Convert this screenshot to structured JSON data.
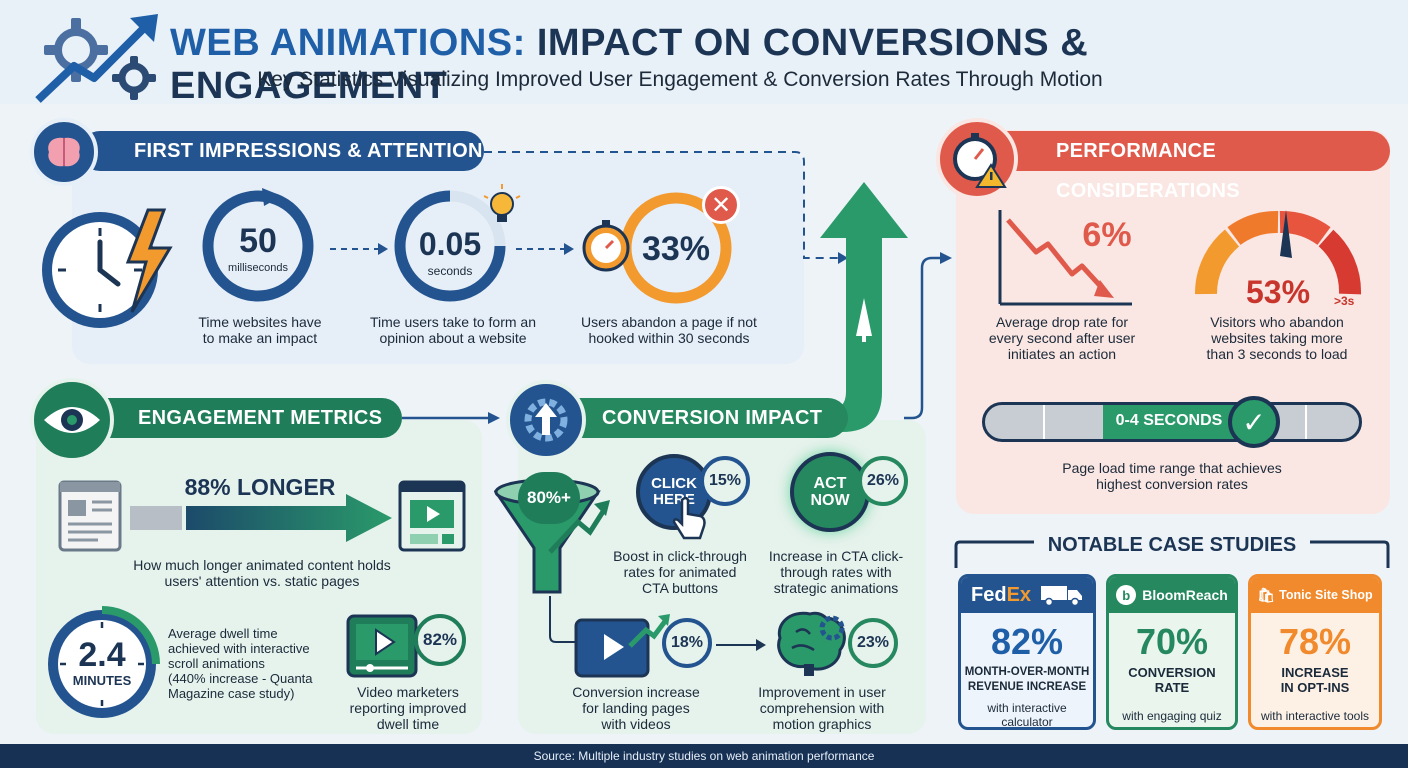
{
  "header": {
    "title_part1": "WEB ANIMATIONS:",
    "title_part2": "IMPACT ON CONVERSIONS & ENGAGEMENT",
    "subtitle": "Key Statistics Visualizing Improved User Engagement & Conversion Rates Through Motion"
  },
  "first_impressions": {
    "heading": "FIRST IMPRESSIONS & ATTENTION",
    "stats": [
      {
        "value": "50",
        "unit": "milliseconds",
        "label_line1": "Time websites have",
        "label_line2": "to make an impact"
      },
      {
        "value": "0.05",
        "unit": "seconds",
        "label_line1": "Time users take to form an",
        "label_line2": "opinion about a website"
      },
      {
        "value": "33%",
        "label_line1": "Users abandon a page if not",
        "label_line2": "hooked within 30 seconds"
      }
    ]
  },
  "engagement": {
    "heading": "ENGAGEMENT METRICS",
    "longer_value": "88% LONGER",
    "longer_line1": "How much longer animated content holds",
    "longer_line2": "users' attention vs. static pages",
    "dwell_value": "2.4",
    "dwell_unit": "MINUTES",
    "dwell_line1": "Average dwell time",
    "dwell_line2": "achieved with interactive",
    "dwell_line3": "scroll animations",
    "dwell_line4": "(440% increase - Quanta",
    "dwell_line5": "Magazine case study)",
    "video_value": "82%",
    "video_line1": "Video marketers",
    "video_line2": "reporting improved",
    "video_line3": "dwell time"
  },
  "conversion": {
    "heading": "CONVERSION IMPACT",
    "funnel_value": "80%+",
    "click_btn_line1": "CLICK",
    "click_btn_line2": "HERE",
    "click_value": "15%",
    "click_line1": "Boost in click-through",
    "click_line2": "rates for animated",
    "click_line3": "CTA buttons",
    "act_btn_line1": "ACT",
    "act_btn_line2": "NOW",
    "act_value": "26%",
    "act_line1": "Increase in CTA click-",
    "act_line2": "through rates with",
    "act_line3": "strategic animations",
    "video_value": "18%",
    "video_line1": "Conversion increase",
    "video_line2": "for landing pages",
    "video_line3": "with videos",
    "brain_value": "23%",
    "brain_line1": "Improvement in user",
    "brain_line2": "comprehension with",
    "brain_line3": "motion graphics"
  },
  "performance": {
    "heading": "PERFORMANCE CONSIDERATIONS",
    "drop_value": "6%",
    "drop_line1": "Average drop rate for",
    "drop_line2": "every second after user",
    "drop_line3": "initiates an action",
    "gauge_value": "53%",
    "gauge_tag": ">3s",
    "gauge_line1": "Visitors who abandon",
    "gauge_line2": "websites taking more",
    "gauge_line3": "than 3 seconds to load",
    "range_label": "0-4 SECONDS",
    "range_line1": "Page load time range that achieves",
    "range_line2": "highest conversion rates"
  },
  "case_studies": {
    "heading": "NOTABLE CASE STUDIES",
    "cards": [
      {
        "brand_a": "Fed",
        "brand_b": "Ex",
        "value": "82%",
        "line1": "MONTH-OVER-MONTH",
        "line2": "REVENUE INCREASE",
        "detail1": "with interactive",
        "detail2": "calculator"
      },
      {
        "brand": "BloomReach",
        "value": "70%",
        "line1": "CONVERSION",
        "line2": "RATE",
        "detail1": "with engaging quiz"
      },
      {
        "brand": "Tonic Site Shop",
        "value": "78%",
        "line1": "INCREASE",
        "line2": "IN OPT-INS",
        "detail1": "with interactive tools"
      }
    ]
  },
  "footer": "Source: Multiple industry studies on web animation performance",
  "colors": {
    "navy": "#1c3554",
    "blue": "#1f5fa8",
    "green": "#25885f",
    "coral": "#e05a4c",
    "orange": "#f08a2c"
  }
}
